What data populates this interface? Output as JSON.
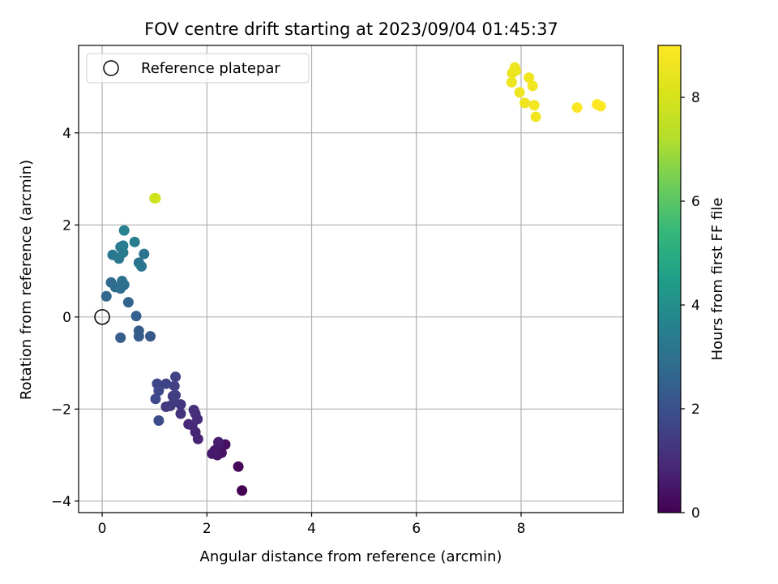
{
  "chart_data": {
    "type": "scatter",
    "title": "FOV centre drift starting at 2023/09/04 01:45:37",
    "xlabel": "Angular distance from reference (arcmin)",
    "ylabel": "Rotation from reference (arcmin)",
    "xlim": [
      -0.45,
      9.95
    ],
    "ylim": [
      -4.25,
      5.9
    ],
    "xticks": [
      0,
      2,
      4,
      6,
      8
    ],
    "yticks": [
      -4,
      -2,
      0,
      2,
      4
    ],
    "xtick_labels": [
      "0",
      "2",
      "4",
      "6",
      "8"
    ],
    "ytick_labels": [
      "−4",
      "−2",
      "0",
      "2",
      "4"
    ],
    "grid": true,
    "legend": {
      "placement": "top-left",
      "entries": [
        "Reference platepar"
      ]
    },
    "reference_point": {
      "label": "Reference platepar",
      "x": 0,
      "y": 0,
      "marker": "hollow-circle"
    },
    "colorbar": {
      "label": "Hours from first FF file",
      "colormap": "viridis",
      "range": [
        0,
        9
      ],
      "ticks": [
        0,
        2,
        4,
        6,
        8
      ],
      "tick_labels": [
        "0",
        "2",
        "4",
        "6",
        "8"
      ]
    },
    "series": [
      {
        "color_by": "hours",
        "points": [
          {
            "x": 2.67,
            "y": -3.77,
            "c": 0.0
          },
          {
            "x": 2.6,
            "y": -3.25,
            "c": 0.15
          },
          {
            "x": 2.35,
            "y": -2.77,
            "c": 0.3
          },
          {
            "x": 2.28,
            "y": -2.95,
            "c": 0.4
          },
          {
            "x": 2.22,
            "y": -2.82,
            "c": 0.45
          },
          {
            "x": 2.2,
            "y": -3.0,
            "c": 0.5
          },
          {
            "x": 2.15,
            "y": -2.9,
            "c": 0.55
          },
          {
            "x": 2.1,
            "y": -2.97,
            "c": 0.6
          },
          {
            "x": 2.22,
            "y": -2.72,
            "c": 0.65
          },
          {
            "x": 1.83,
            "y": -2.65,
            "c": 0.8
          },
          {
            "x": 1.78,
            "y": -2.5,
            "c": 0.85
          },
          {
            "x": 1.72,
            "y": -2.35,
            "c": 0.9
          },
          {
            "x": 1.65,
            "y": -2.33,
            "c": 0.95
          },
          {
            "x": 1.82,
            "y": -2.22,
            "c": 1.0
          },
          {
            "x": 1.78,
            "y": -2.1,
            "c": 1.05
          },
          {
            "x": 1.75,
            "y": -2.02,
            "c": 1.1
          },
          {
            "x": 1.5,
            "y": -2.1,
            "c": 1.2
          },
          {
            "x": 1.5,
            "y": -1.9,
            "c": 1.25
          },
          {
            "x": 1.3,
            "y": -1.93,
            "c": 1.3
          },
          {
            "x": 1.22,
            "y": -1.95,
            "c": 1.35
          },
          {
            "x": 1.38,
            "y": -1.85,
            "c": 1.4
          },
          {
            "x": 1.35,
            "y": -1.72,
            "c": 1.45
          },
          {
            "x": 1.4,
            "y": -1.7,
            "c": 1.5
          },
          {
            "x": 1.38,
            "y": -1.5,
            "c": 1.55
          },
          {
            "x": 1.4,
            "y": -1.3,
            "c": 1.6
          },
          {
            "x": 1.22,
            "y": -1.45,
            "c": 1.65
          },
          {
            "x": 1.05,
            "y": -1.45,
            "c": 1.7
          },
          {
            "x": 1.08,
            "y": -1.6,
            "c": 1.75
          },
          {
            "x": 1.02,
            "y": -1.78,
            "c": 1.8
          },
          {
            "x": 1.08,
            "y": -2.25,
            "c": 1.85
          },
          {
            "x": 0.92,
            "y": -0.42,
            "c": 2.2
          },
          {
            "x": 0.7,
            "y": -0.42,
            "c": 2.3
          },
          {
            "x": 0.7,
            "y": -0.3,
            "c": 2.35
          },
          {
            "x": 0.35,
            "y": -0.45,
            "c": 2.4
          },
          {
            "x": 0.65,
            "y": 0.02,
            "c": 2.5
          },
          {
            "x": 0.5,
            "y": 0.32,
            "c": 2.6
          },
          {
            "x": 0.08,
            "y": 0.45,
            "c": 2.7
          },
          {
            "x": 0.17,
            "y": 0.75,
            "c": 2.8
          },
          {
            "x": 0.25,
            "y": 0.65,
            "c": 2.85
          },
          {
            "x": 0.35,
            "y": 0.62,
            "c": 2.9
          },
          {
            "x": 0.42,
            "y": 0.7,
            "c": 2.95
          },
          {
            "x": 0.38,
            "y": 0.78,
            "c": 3.0
          },
          {
            "x": 0.7,
            "y": 1.18,
            "c": 3.1
          },
          {
            "x": 0.75,
            "y": 1.1,
            "c": 3.15
          },
          {
            "x": 0.8,
            "y": 1.37,
            "c": 3.2
          },
          {
            "x": 0.2,
            "y": 1.35,
            "c": 3.25
          },
          {
            "x": 0.32,
            "y": 1.27,
            "c": 3.3
          },
          {
            "x": 0.4,
            "y": 1.4,
            "c": 3.35
          },
          {
            "x": 0.35,
            "y": 1.52,
            "c": 3.4
          },
          {
            "x": 0.4,
            "y": 1.55,
            "c": 3.45
          },
          {
            "x": 0.62,
            "y": 1.63,
            "c": 3.5
          },
          {
            "x": 0.42,
            "y": 1.88,
            "c": 3.55
          },
          {
            "x": 1.0,
            "y": 2.58,
            "c": 7.8
          },
          {
            "x": 1.02,
            "y": 2.58,
            "c": 7.85
          },
          {
            "x": 7.82,
            "y": 5.1,
            "c": 8.5
          },
          {
            "x": 7.83,
            "y": 5.3,
            "c": 8.52
          },
          {
            "x": 7.9,
            "y": 5.35,
            "c": 8.55
          },
          {
            "x": 7.88,
            "y": 5.42,
            "c": 8.58
          },
          {
            "x": 7.97,
            "y": 4.88,
            "c": 8.6
          },
          {
            "x": 8.07,
            "y": 4.65,
            "c": 8.62
          },
          {
            "x": 8.15,
            "y": 5.2,
            "c": 8.65
          },
          {
            "x": 8.22,
            "y": 5.02,
            "c": 8.68
          },
          {
            "x": 8.25,
            "y": 4.6,
            "c": 8.7
          },
          {
            "x": 8.28,
            "y": 4.35,
            "c": 8.72
          },
          {
            "x": 9.07,
            "y": 4.55,
            "c": 8.9
          },
          {
            "x": 9.45,
            "y": 4.62,
            "c": 8.95
          },
          {
            "x": 9.52,
            "y": 4.58,
            "c": 9.0
          }
        ]
      }
    ]
  }
}
